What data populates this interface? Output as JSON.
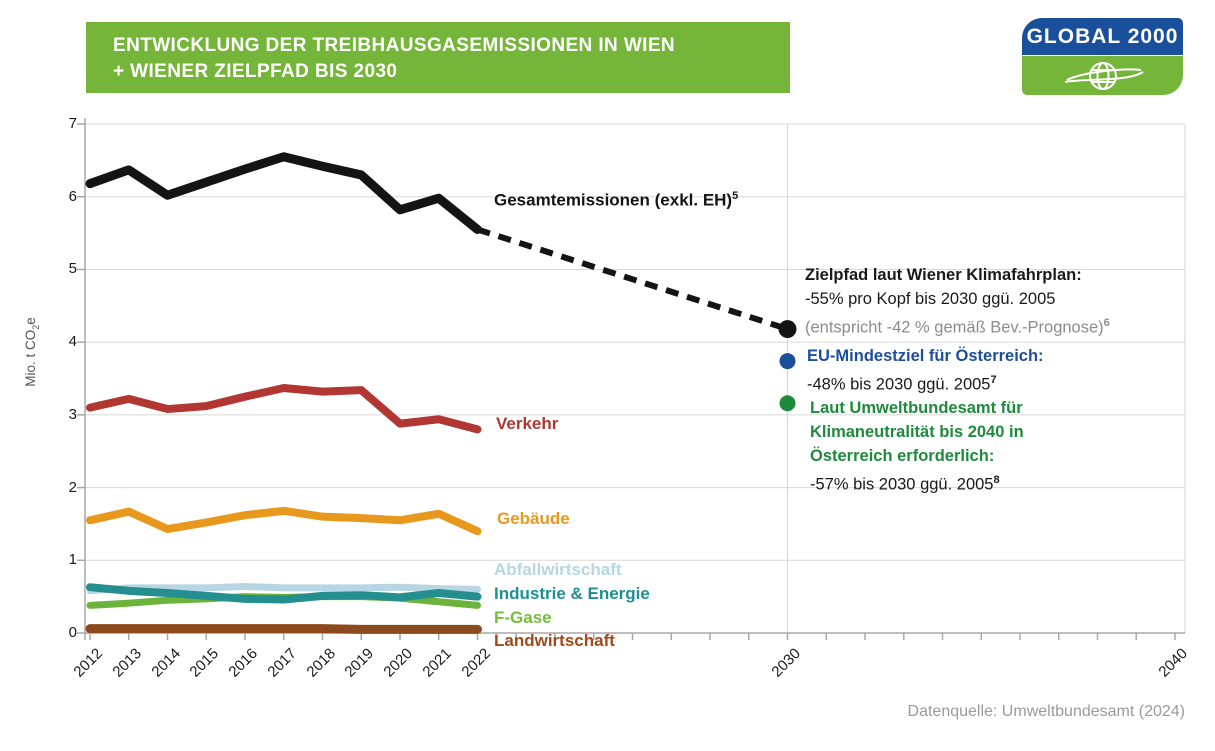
{
  "header": {
    "title_line1": "ENTWICKLUNG DER TREIBHAUSGASEMISSIONEN IN WIEN",
    "title_line2": "+ WIENER ZIELPFAD BIS 2030",
    "banner_color": "#74b53a",
    "logo": {
      "text": "GLOBAL 2000",
      "blue": "#1a4f9c",
      "green": "#74b53a"
    }
  },
  "y_axis": {
    "prefix": "Mio. t CO",
    "sub": "2",
    "suffix": "e"
  },
  "chart_data": {
    "type": "line",
    "title": "Entwicklung der Treibhausgasemissionen in Wien + Wiener Zielpfad bis 2030",
    "ylabel": "Mio. t CO2e",
    "ylim": [
      0,
      7
    ],
    "grid": true,
    "y_ticks": [
      0,
      1,
      2,
      3,
      4,
      5,
      6,
      7
    ],
    "x_tick_year_start": 2012,
    "x_tick_year_end": 2040,
    "x_tick_labels": [
      2012,
      2013,
      2014,
      2015,
      2016,
      2017,
      2018,
      2019,
      2020,
      2021,
      2022,
      2030,
      2040
    ],
    "gridline_years": [
      2030,
      2040
    ],
    "categories": [
      2012,
      2013,
      2014,
      2015,
      2016,
      2017,
      2018,
      2019,
      2020,
      2021,
      2022
    ],
    "series": [
      {
        "name": "Abfallwirtschaft",
        "color": "#b8d5e3",
        "width": 7,
        "values": [
          0.58,
          0.62,
          0.62,
          0.62,
          0.64,
          0.62,
          0.62,
          0.62,
          0.63,
          0.61,
          0.6
        ]
      },
      {
        "name": "F-Gase",
        "color": "#6cb33c",
        "width": 7,
        "values": [
          0.38,
          0.41,
          0.45,
          0.47,
          0.5,
          0.49,
          0.5,
          0.5,
          0.48,
          0.43,
          0.38
        ]
      },
      {
        "name": "Industrie & Energie",
        "color": "#258e8e",
        "width": 8,
        "values": [
          0.63,
          0.58,
          0.55,
          0.51,
          0.47,
          0.46,
          0.51,
          0.52,
          0.49,
          0.55,
          0.5
        ]
      },
      {
        "name": "Landwirtschaft",
        "color": "#8d4a1e",
        "width": 9,
        "values": [
          0.06,
          0.06,
          0.06,
          0.06,
          0.06,
          0.06,
          0.06,
          0.05,
          0.05,
          0.05,
          0.05
        ]
      },
      {
        "name": "Gebäude",
        "color": "#e8991d",
        "width": 8,
        "values": [
          1.55,
          1.67,
          1.43,
          1.52,
          1.62,
          1.68,
          1.6,
          1.58,
          1.55,
          1.64,
          1.4
        ]
      },
      {
        "name": "Verkehr",
        "color": "#b23733",
        "width": 8,
        "values": [
          3.1,
          3.22,
          3.08,
          3.12,
          3.25,
          3.37,
          3.32,
          3.34,
          2.88,
          2.94,
          2.8
        ]
      },
      {
        "name": "Gesamtemissionen (exkl. EH)",
        "color": "#141414",
        "width": 9,
        "values": [
          6.18,
          6.37,
          6.02,
          6.2,
          6.38,
          6.55,
          6.42,
          6.3,
          5.82,
          5.98,
          5.55
        ]
      }
    ],
    "projection": {
      "name": "Zielpfad bis 2030",
      "color": "#141414",
      "width": 6,
      "dash": "13 9",
      "from": {
        "year": 2022,
        "value": 5.55
      },
      "to": {
        "year": 2030,
        "value": 4.18
      }
    },
    "targets": [
      {
        "name": "Zielpfad laut Wiener Klimafahrplan",
        "year": 2030,
        "value": 4.18,
        "color": "#141414",
        "r": 9
      },
      {
        "name": "EU-Mindestziel für Österreich",
        "year": 2030,
        "value": 3.74,
        "color": "#1d4e9b",
        "r": 8
      },
      {
        "name": "Laut Umweltbundesamt erforderlich",
        "year": 2030,
        "value": 3.16,
        "color": "#1e8a3c",
        "r": 8
      }
    ],
    "legend_position": "inline-right-of-lines"
  },
  "series_labels": {
    "gesamt": {
      "text": "Gesamtemissionen (exkl. EH)",
      "sup": "5",
      "color": "#141414"
    },
    "verkehr": {
      "text": "Verkehr",
      "color": "#b23733"
    },
    "gebaeude": {
      "text": "Gebäude",
      "color": "#e8991d"
    },
    "abfall": {
      "text": "Abfallwirtschaft",
      "color": "#b5d7e0"
    },
    "industrie": {
      "text": "Industrie & Energie",
      "color": "#1f8f90"
    },
    "fgase": {
      "text": "F-Gase",
      "color": "#76bd3c"
    },
    "landwirtschaft": {
      "text": "Landwirtschaft",
      "color": "#a3481c"
    }
  },
  "annotations": {
    "zielpfad": {
      "title": "Zielpfad laut Wiener Klimafahrplan:",
      "line2": "-55% pro Kopf bis 2030 ggü. 2005",
      "line3": "(entspricht -42 % gemäß Bev.-Prognose)",
      "sup": "6",
      "title_color": "#1a1a1a",
      "line3_color": "#8c8c8c"
    },
    "eu": {
      "title": "EU-Mindestziel für Österreich:",
      "line2": "-48% bis 2030 ggü. 2005",
      "sup": "7",
      "title_color": "#1d4e9b"
    },
    "uba": {
      "title1": "Laut Umweltbundesamt für",
      "title2": "Klimaneutralität bis 2040 in",
      "title3": "Österreich erforderlich:",
      "line4": "-57% bis 2030 ggü. 2005",
      "sup": "8",
      "title_color": "#1e8a3c"
    }
  },
  "footer": {
    "source": "Datenquelle: Umweltbundesamt (2024)"
  }
}
